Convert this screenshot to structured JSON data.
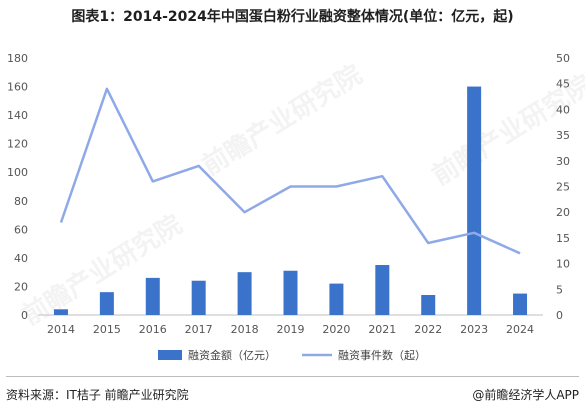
{
  "title": "图表1：2014-2024年中国蛋白粉行业融资整体情况(单位：亿元，起)",
  "source": "资料来源：IT桔子 前瞻产业研究院",
  "credit": "@前瞻经济学人APP",
  "watermark_text": "前瞻产业研究院",
  "colors": {
    "bar": "#3a73c9",
    "line": "#8fa9e8",
    "grid": "#e3e3e3",
    "axis": "#bfbfbf"
  },
  "chart_data": {
    "type": "bar",
    "categories": [
      "2014",
      "2015",
      "2016",
      "2017",
      "2018",
      "2019",
      "2020",
      "2021",
      "2022",
      "2023",
      "2024"
    ],
    "series": [
      {
        "name": "融资金额（亿元）",
        "type": "bar",
        "axis": "left",
        "values": [
          4,
          16,
          26,
          24,
          30,
          31,
          22,
          35,
          14,
          160,
          15
        ]
      },
      {
        "name": "融资事件数（起）",
        "type": "line",
        "axis": "right",
        "values": [
          18,
          44,
          26,
          29,
          20,
          25,
          25,
          27,
          14,
          16,
          12
        ]
      }
    ],
    "y_left": {
      "range": [
        0,
        180
      ],
      "ticks": [
        "0",
        "20",
        "40",
        "60",
        "80",
        "100",
        "120",
        "140",
        "160",
        "180"
      ]
    },
    "y_right": {
      "range": [
        0,
        50
      ],
      "ticks": [
        "0",
        "5",
        "10",
        "15",
        "20",
        "25",
        "30",
        "35",
        "40",
        "45",
        "50"
      ]
    },
    "grid": false,
    "legend": "bottom-center"
  }
}
